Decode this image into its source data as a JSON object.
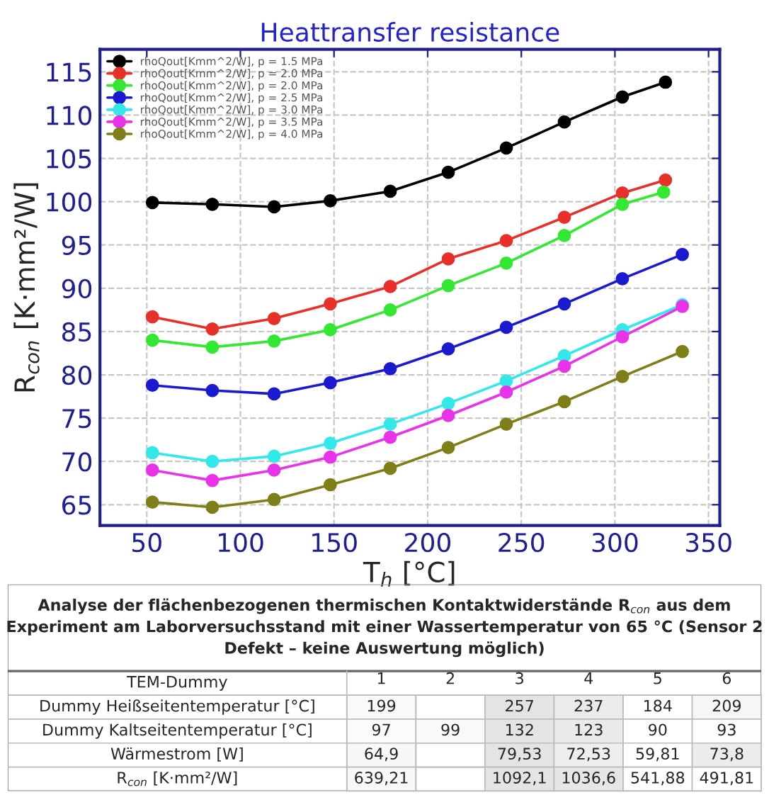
{
  "chart_data": [
    {
      "type": "line",
      "title": "Heattransfer resistance",
      "xlabel": "T$_{h}$ [°C]",
      "ylabel": "R$_{con}$ [K·mm²/W]",
      "xlim": [
        25,
        356
      ],
      "xticks": [
        50,
        100,
        150,
        200,
        250,
        300,
        350
      ],
      "ylim": [
        62.6,
        117.6
      ],
      "yticks": [
        65,
        70,
        75,
        80,
        85,
        90,
        95,
        100,
        105,
        110,
        115
      ],
      "grid": true,
      "legend": "top left",
      "marker": "circle",
      "line_style": "solid",
      "series": [
        {
          "name": "rhoQout[Kmm^2/W], p = 1.5 MPa",
          "color": "#000000",
          "x": [
            53,
            85,
            118,
            148,
            180,
            211,
            242,
            273,
            304,
            327
          ],
          "values": [
            99.9,
            99.7,
            99.4,
            100.1,
            101.2,
            103.4,
            106.2,
            109.2,
            112.1,
            113.8
          ]
        },
        {
          "name": "rhoQout[Kmm^2/W], p = 2.0 MPa",
          "color": "#e8302a",
          "x": [
            53,
            85,
            118,
            148,
            180,
            211,
            242,
            273,
            304,
            327
          ],
          "values": [
            86.7,
            85.3,
            86.5,
            88.2,
            90.2,
            93.4,
            95.5,
            98.2,
            101.0,
            102.5
          ]
        },
        {
          "name": "rhoQout[Kmm^2/W], p = 2.0 MPa",
          "color": "#33e833",
          "x": [
            53,
            85,
            118,
            148,
            180,
            211,
            242,
            273,
            304,
            326
          ],
          "values": [
            84.0,
            83.2,
            83.9,
            85.2,
            87.5,
            90.3,
            92.9,
            96.1,
            99.7,
            101.1
          ]
        },
        {
          "name": "rhoQout[Kmm^2/W], p = 2.5 MPa",
          "color": "#1a1ad0",
          "x": [
            53,
            85,
            118,
            148,
            180,
            211,
            242,
            273,
            304,
            336
          ],
          "values": [
            78.8,
            78.2,
            77.8,
            79.1,
            80.7,
            83.0,
            85.5,
            88.2,
            91.1,
            93.9
          ]
        },
        {
          "name": "rhoQout[Kmm^2/W], p = 3.0 MPa",
          "color": "#33e8e8",
          "x": [
            53,
            85,
            118,
            148,
            180,
            211,
            242,
            273,
            304,
            336
          ],
          "values": [
            71.0,
            70.0,
            70.6,
            72.1,
            74.3,
            76.7,
            79.3,
            82.2,
            85.2,
            88.1
          ]
        },
        {
          "name": "rhoQout[Kmm^2/W], p = 3.5 MPa",
          "color": "#e833e8",
          "x": [
            53,
            85,
            118,
            148,
            180,
            211,
            242,
            273,
            304,
            336
          ],
          "values": [
            69.0,
            67.8,
            69.0,
            70.5,
            72.8,
            75.3,
            78.0,
            81.0,
            84.4,
            87.9
          ]
        },
        {
          "name": "rhoQout[Kmm^2/W], p = 4.0 MPa",
          "color": "#7f7f19",
          "x": [
            53,
            85,
            118,
            148,
            180,
            211,
            242,
            273,
            304,
            336
          ],
          "values": [
            65.3,
            64.7,
            65.6,
            67.3,
            69.2,
            71.6,
            74.3,
            76.9,
            79.8,
            82.7
          ]
        }
      ]
    },
    {
      "type": "heatmap",
      "title": "Analyse der flächenbezogenen thermischen Kontaktwiderstände R$_{con}$ aus dem Experiment am Laborversuchsstand mit einer Wassertemperatur von 65 °C (Sensor 2 Defekt – keine Auswertung möglich)",
      "ylabel": "TEM-Dummy",
      "categories": [
        "1",
        "2",
        "3",
        "4",
        "5",
        "6"
      ],
      "y_categories": [
        "Dummy Heißseitentemperatur [°C]",
        "Dummy Kaltseitentemperatur [°C]",
        "Wärmestrom [W]",
        "R$_{con}$ [K·mm²/W]"
      ],
      "cells": [
        [
          199,
          null,
          257,
          237,
          184,
          209
        ],
        [
          97,
          99,
          132,
          123,
          90,
          93
        ],
        [
          64.9,
          null,
          79.53,
          72.53,
          59.81,
          73.8
        ],
        [
          639.21,
          null,
          1092.1,
          1036.6,
          541.88,
          491.81
        ]
      ],
      "cell_labels": [
        [
          "199",
          null,
          "257",
          "237",
          "184",
          "209"
        ],
        [
          "97",
          "99",
          "132",
          "123",
          "90",
          "93"
        ],
        [
          "64,9",
          null,
          "79,53",
          "72,53",
          "59,81",
          "73,8"
        ],
        [
          "639,21",
          null,
          "1092,1",
          "1036,6",
          "541,88",
          "491,81"
        ]
      ]
    }
  ]
}
